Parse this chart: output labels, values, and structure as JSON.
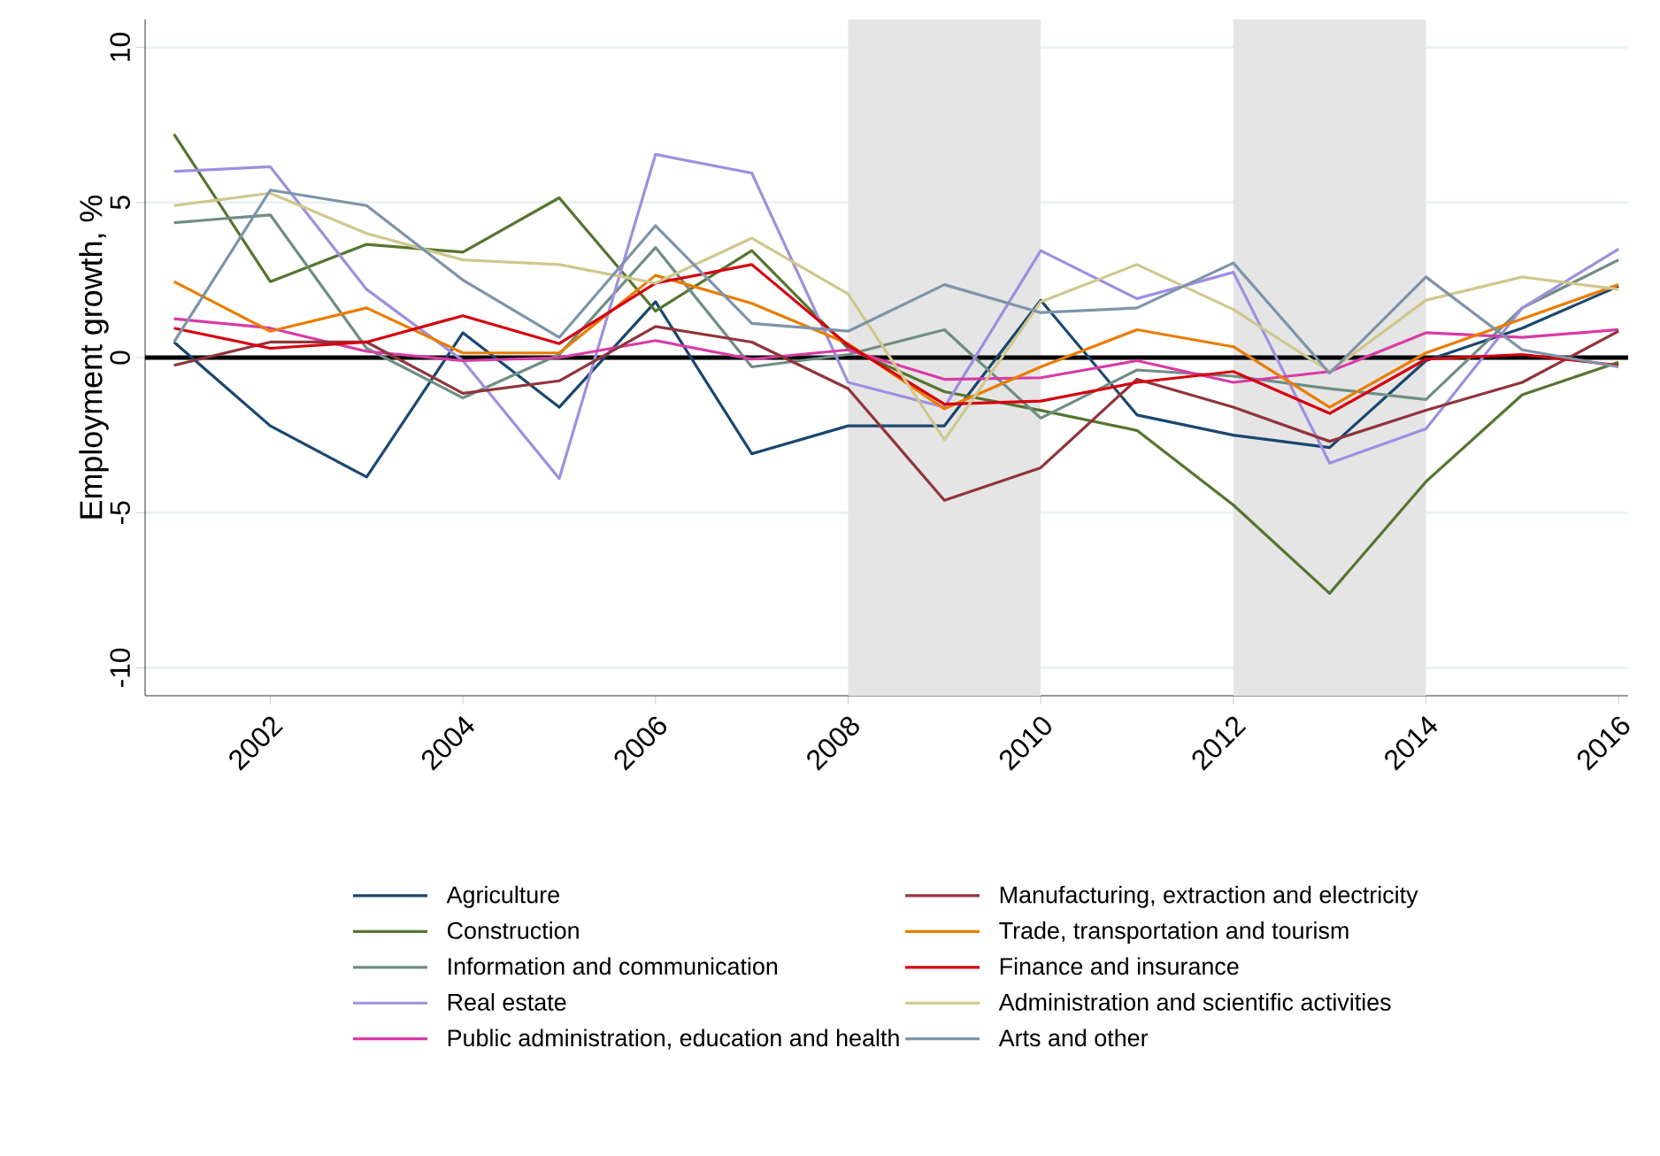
{
  "chart_data": {
    "type": "line",
    "ylabel": "Employment growth, %",
    "x": [
      2001,
      2002,
      2003,
      2004,
      2005,
      2006,
      2007,
      2008,
      2009,
      2010,
      2011,
      2012,
      2013,
      2014,
      2015,
      2016
    ],
    "series": [
      {
        "name": "Agriculture",
        "color": "#1a476f",
        "values": [
          0.5,
          -2.2,
          -3.85,
          0.8,
          -1.6,
          1.8,
          -3.1,
          -2.2,
          -2.2,
          1.85,
          -1.85,
          -2.5,
          -2.9,
          -0.1,
          0.95,
          2.3
        ]
      },
      {
        "name": "Construction",
        "color": "#55752f",
        "values": [
          7.2,
          2.45,
          3.65,
          3.4,
          5.15,
          1.5,
          3.45,
          0.3,
          -1.1,
          -1.7,
          -2.35,
          -4.75,
          -7.6,
          -4.0,
          -1.2,
          -0.15
        ]
      },
      {
        "name": "Information and communication",
        "color": "#6e8e84",
        "values": [
          4.35,
          4.6,
          0.3,
          -1.3,
          0.1,
          3.55,
          -0.3,
          0.1,
          0.9,
          -1.95,
          -0.4,
          -0.6,
          -1.0,
          -1.35,
          1.6,
          3.15
        ]
      },
      {
        "name": "Real estate",
        "color": "#9e8fe0",
        "values": [
          6.0,
          6.15,
          2.2,
          -0.1,
          -3.9,
          6.55,
          5.95,
          -0.8,
          -1.6,
          3.45,
          1.9,
          2.75,
          -3.4,
          -2.3,
          1.6,
          3.5
        ]
      },
      {
        "name": "Public administration, education and health",
        "color": "#d93aa6",
        "values": [
          1.25,
          0.95,
          0.2,
          -0.1,
          0.0,
          0.55,
          -0.05,
          0.25,
          -0.7,
          -0.65,
          -0.1,
          -0.8,
          -0.45,
          0.8,
          0.65,
          0.9
        ]
      },
      {
        "name": "Manufacturing, extraction and electricity",
        "color": "#90353b",
        "values": [
          -0.25,
          0.5,
          0.5,
          -1.15,
          -0.75,
          1.0,
          0.5,
          -1.0,
          -4.6,
          -3.55,
          -0.7,
          -1.6,
          -2.7,
          -1.7,
          -0.8,
          0.85
        ]
      },
      {
        "name": "Trade, transportation and tourism",
        "color": "#e87d00",
        "values": [
          2.45,
          0.85,
          1.6,
          0.15,
          0.15,
          2.65,
          1.75,
          0.45,
          -1.65,
          -0.3,
          0.9,
          0.35,
          -1.6,
          0.15,
          1.25,
          2.35
        ]
      },
      {
        "name": "Finance and insurance",
        "color": "#d6000f",
        "values": [
          0.95,
          0.3,
          0.5,
          1.35,
          0.45,
          2.4,
          3.0,
          0.4,
          -1.5,
          -1.4,
          -0.8,
          -0.45,
          -1.8,
          -0.05,
          0.1,
          -0.25
        ]
      },
      {
        "name": "Administration and scientific activities",
        "color": "#d0c78d",
        "values": [
          4.9,
          5.3,
          4.0,
          3.15,
          3.0,
          2.4,
          3.85,
          2.05,
          -2.65,
          1.8,
          3.0,
          1.55,
          -0.45,
          1.85,
          2.6,
          2.2
        ]
      },
      {
        "name": "Arts and other",
        "color": "#7c94ab",
        "values": [
          0.5,
          5.4,
          4.9,
          2.5,
          0.65,
          4.25,
          1.1,
          0.85,
          2.35,
          1.45,
          1.6,
          3.05,
          -0.5,
          2.6,
          0.25,
          -0.3
        ]
      }
    ],
    "xlim": [
      2000.7,
      2016.1
    ],
    "ylim": [
      -10.9,
      10.9
    ],
    "xticks": [
      2002,
      2004,
      2006,
      2008,
      2010,
      2012,
      2014,
      2016
    ],
    "yticks": [
      -10,
      -5,
      0,
      5,
      10
    ],
    "grid": "y",
    "legend": "bottom",
    "bands": [
      {
        "axis": "x",
        "from": 2008,
        "to": 2010,
        "color": "#e5e5e5"
      },
      {
        "axis": "x",
        "from": 2012,
        "to": 2014,
        "color": "#e5e5e5"
      }
    ],
    "ref_lines": [
      {
        "axis": "y",
        "value": 0,
        "color": "#000000"
      }
    ]
  }
}
